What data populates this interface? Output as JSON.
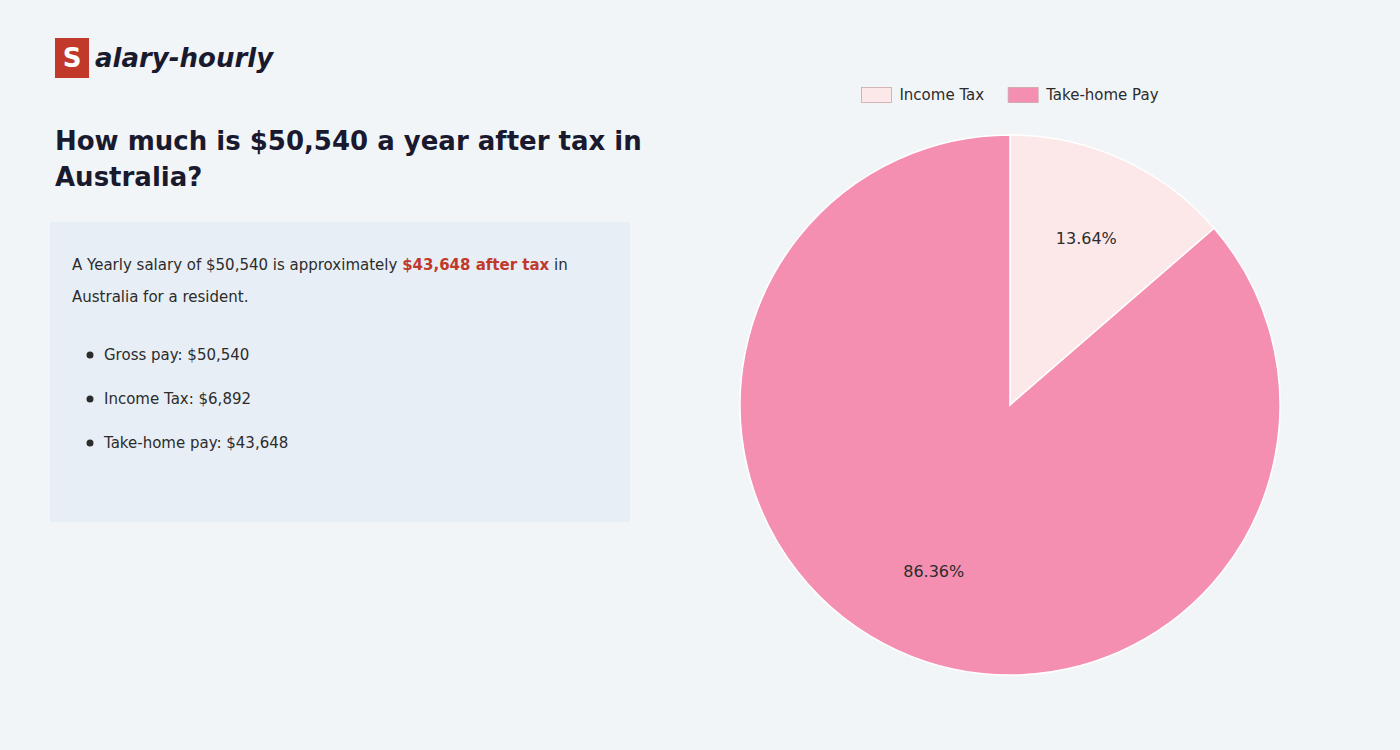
{
  "chart_data": {
    "type": "pie",
    "annotations": [
      {
        "text": "S",
        "color": "#c0392b"
      },
      {
        "text": "alary-hourly"
      },
      {
        "text": "How much is $50,540 a year after tax in"
      },
      {
        "text": "Australia?"
      },
      {
        "text": "A Yearly salary of $50,540 is approximately "
      },
      {
        "text": "$43,648 after tax",
        "color": "#c0392b"
      },
      {
        "text": " in"
      },
      {
        "text": "Australia for a resident."
      },
      {
        "text": "Gross pay: $50,540"
      },
      {
        "text": "Income Tax: $6,892"
      },
      {
        "text": "Take-home pay: $43,648"
      }
    ],
    "categories": [
      "Income Tax",
      "Take-home Pay"
    ],
    "values": [
      13.64,
      86.36
    ],
    "value_labels": [
      "13.64%",
      "86.36%"
    ],
    "colors": [
      "#fce8e8",
      "#f48fb1"
    ],
    "data_labels": true,
    "legend": "top"
  }
}
